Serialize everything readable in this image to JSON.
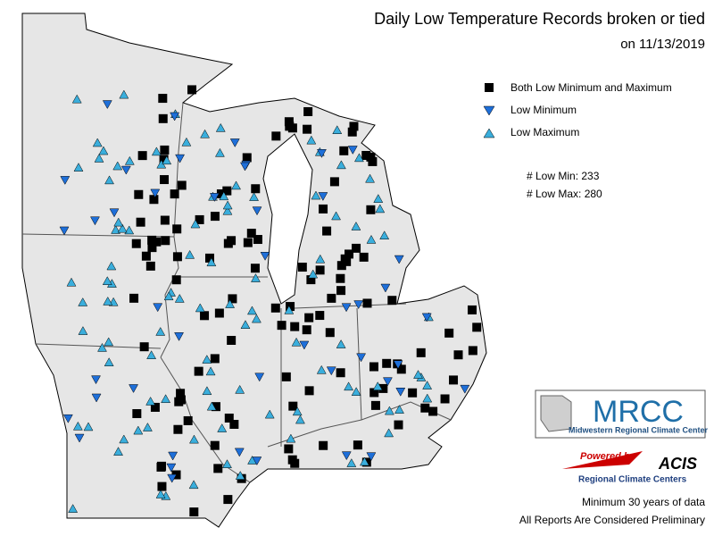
{
  "title": {
    "line1": "Daily Low Temperature Records broken or tied",
    "line2": "on 11/13/2019"
  },
  "legend": [
    "Both Low Minimum and Maximum",
    "Low Minimum",
    "Low Maximum"
  ],
  "stats": [
    "# Low Min: 233",
    "# Low Max: 280"
  ],
  "logos": {
    "mrcc": "MRCC",
    "mrcc_name": "Midwestern Regional Climate Center",
    "powered": "Powered by",
    "acis": "ACIS",
    "acis_name": "Regional Climate Centers"
  },
  "footer": [
    "Minimum 30 years of data",
    "All Reports Are Considered Preliminary"
  ]
}
